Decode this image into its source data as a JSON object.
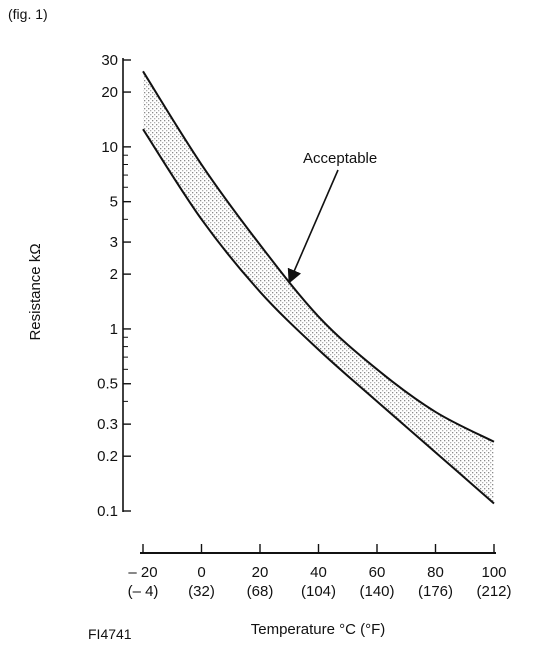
{
  "figure_label": "(fig. 1)",
  "figure_code": "FI4741",
  "chart_data": {
    "type": "area",
    "title": "",
    "xlabel": "Temperature °C (°F)",
    "ylabel": "Resistance kΩ",
    "x_scale": "linear",
    "y_scale": "log",
    "xlim": [
      -20,
      100
    ],
    "ylim": [
      0.1,
      30
    ],
    "grid": false,
    "legend": "none",
    "x_ticks": [
      {
        "value": -20,
        "label": "– 20",
        "sublabel": "(– 4)"
      },
      {
        "value": 0,
        "label": "0",
        "sublabel": "(32)"
      },
      {
        "value": 20,
        "label": "20",
        "sublabel": "(68)"
      },
      {
        "value": 40,
        "label": "40",
        "sublabel": "(104)"
      },
      {
        "value": 60,
        "label": "60",
        "sublabel": "(140)"
      },
      {
        "value": 80,
        "label": "80",
        "sublabel": "(176)"
      },
      {
        "value": 100,
        "label": "100",
        "sublabel": "(212)"
      }
    ],
    "y_ticks": [
      {
        "value": 0.1,
        "label": "0.1"
      },
      {
        "value": 0.2,
        "label": "0.2"
      },
      {
        "value": 0.3,
        "label": "0.3"
      },
      {
        "value": 0.5,
        "label": "0.5"
      },
      {
        "value": 1,
        "label": "1"
      },
      {
        "value": 2,
        "label": "2"
      },
      {
        "value": 3,
        "label": "3"
      },
      {
        "value": 5,
        "label": "5"
      },
      {
        "value": 10,
        "label": "10"
      },
      {
        "value": 20,
        "label": "20"
      },
      {
        "value": 30,
        "label": "30"
      }
    ],
    "series": [
      {
        "x": [
          -20,
          0,
          20,
          40,
          60,
          80,
          100
        ],
        "y": [
          26,
          8.0,
          2.9,
          1.17,
          0.6,
          0.35,
          0.24
        ]
      },
      {
        "x": [
          -20,
          0,
          20,
          40,
          60,
          80,
          100
        ],
        "y": [
          12.5,
          4.0,
          1.6,
          0.77,
          0.4,
          0.21,
          0.11
        ]
      }
    ],
    "annotations": [
      {
        "text": "Acceptable",
        "arrow_to": {
          "x": 30,
          "y": 1.8
        }
      }
    ],
    "colors": {
      "ink": "#111111",
      "band_fill": "#9a9a9a"
    }
  }
}
